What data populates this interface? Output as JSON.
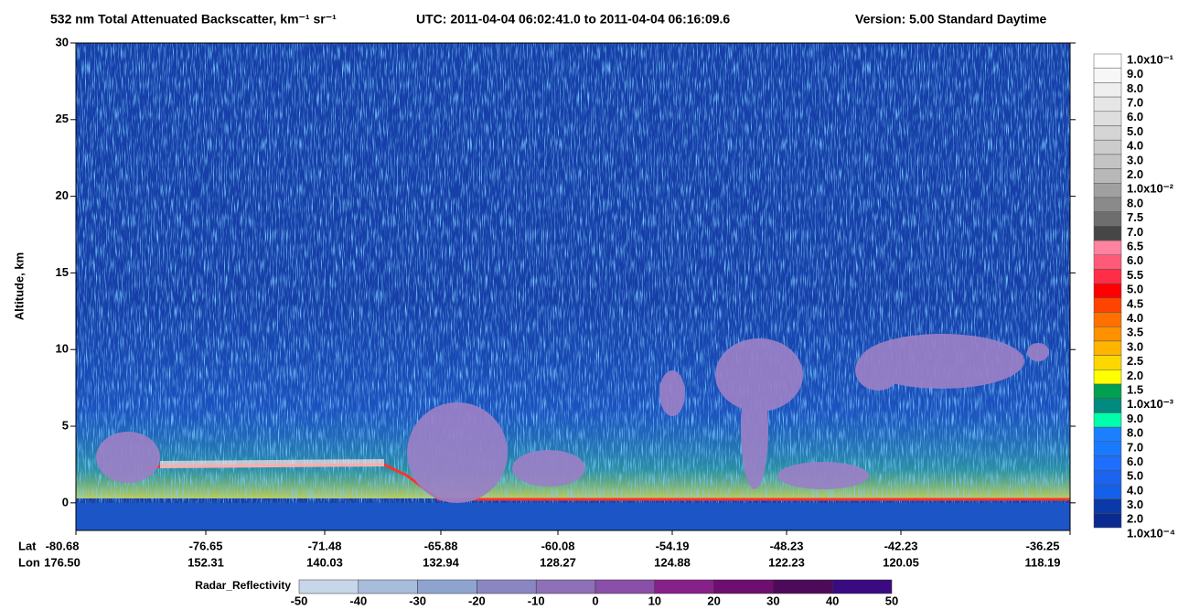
{
  "chart_data": {
    "type": "curtain",
    "title": "532 nm Total Attenuated Backscatter, km⁻¹ sr⁻¹",
    "utc": "UTC:  2011-04-04 06:02:41.0  to  2011-04-04 06:16:09.6",
    "version": "Version: 5.00  Standard  Daytime",
    "ylabel": "Altitude, km",
    "ylim": [
      -1.8,
      30
    ],
    "yticks": [
      0,
      5,
      10,
      15,
      20,
      25,
      30
    ],
    "lat_label": "Lat",
    "lon_label": "Lon",
    "lat": [
      -80.68,
      -76.65,
      -71.48,
      -65.88,
      -60.08,
      -54.19,
      -48.23,
      -42.23,
      -36.25
    ],
    "lon": [
      {
        "value": 176.5,
        "label": "176.50"
      },
      152.31,
      140.03,
      132.94,
      128.27,
      124.88,
      122.23,
      120.05,
      118.19
    ],
    "colorbar": {
      "labels": [
        "1.0x10⁻¹",
        "9.0",
        "8.0",
        "7.0",
        "6.0",
        "5.0",
        "4.0",
        "3.0",
        "2.0",
        "1.0x10⁻²",
        "8.0",
        "7.5",
        "7.0",
        "6.5",
        "6.0",
        "5.5",
        "5.0",
        "4.5",
        "4.0",
        "3.5",
        "3.0",
        "2.5",
        "2.0",
        "1.5",
        "1.0x10⁻³",
        "9.0",
        "8.0",
        "7.0",
        "6.0",
        "5.0",
        "4.0",
        "3.0",
        "2.0",
        "1.0x10⁻⁴"
      ],
      "colors": [
        "#ffffff",
        "#f7f7f7",
        "#efefef",
        "#e6e6e6",
        "#dedede",
        "#d5d5d5",
        "#cccccc",
        "#c3c3c3",
        "#b8b8b8",
        "#a0a0a0",
        "#8a8a8a",
        "#6e6e6e",
        "#464646",
        "#ff82a0",
        "#ff5a78",
        "#ff2d48",
        "#ff0000",
        "#ff4400",
        "#ff7000",
        "#ff9000",
        "#ffb400",
        "#ffd700",
        "#ffff00",
        "#00a050",
        "#008a80",
        "#00ffaa",
        "#1a80ff",
        "#1a7aff",
        "#1e6eff",
        "#1a64f0",
        "#1560e8",
        "#0a3aa8",
        "#0a2a90"
      ]
    },
    "radar": {
      "label": "Radar_Reflectivity",
      "ticks": [
        -50,
        -40,
        -30,
        -20,
        -10,
        0,
        10,
        20,
        30,
        40,
        50
      ],
      "colors": [
        "#c8d6ea",
        "#a8bcdc",
        "#8ea4cf",
        "#8a86c2",
        "#8e6fb8",
        "#8a4fa8",
        "#88208a",
        "#6e0e70",
        "#4e0a5a",
        "#3a0a80"
      ]
    }
  }
}
